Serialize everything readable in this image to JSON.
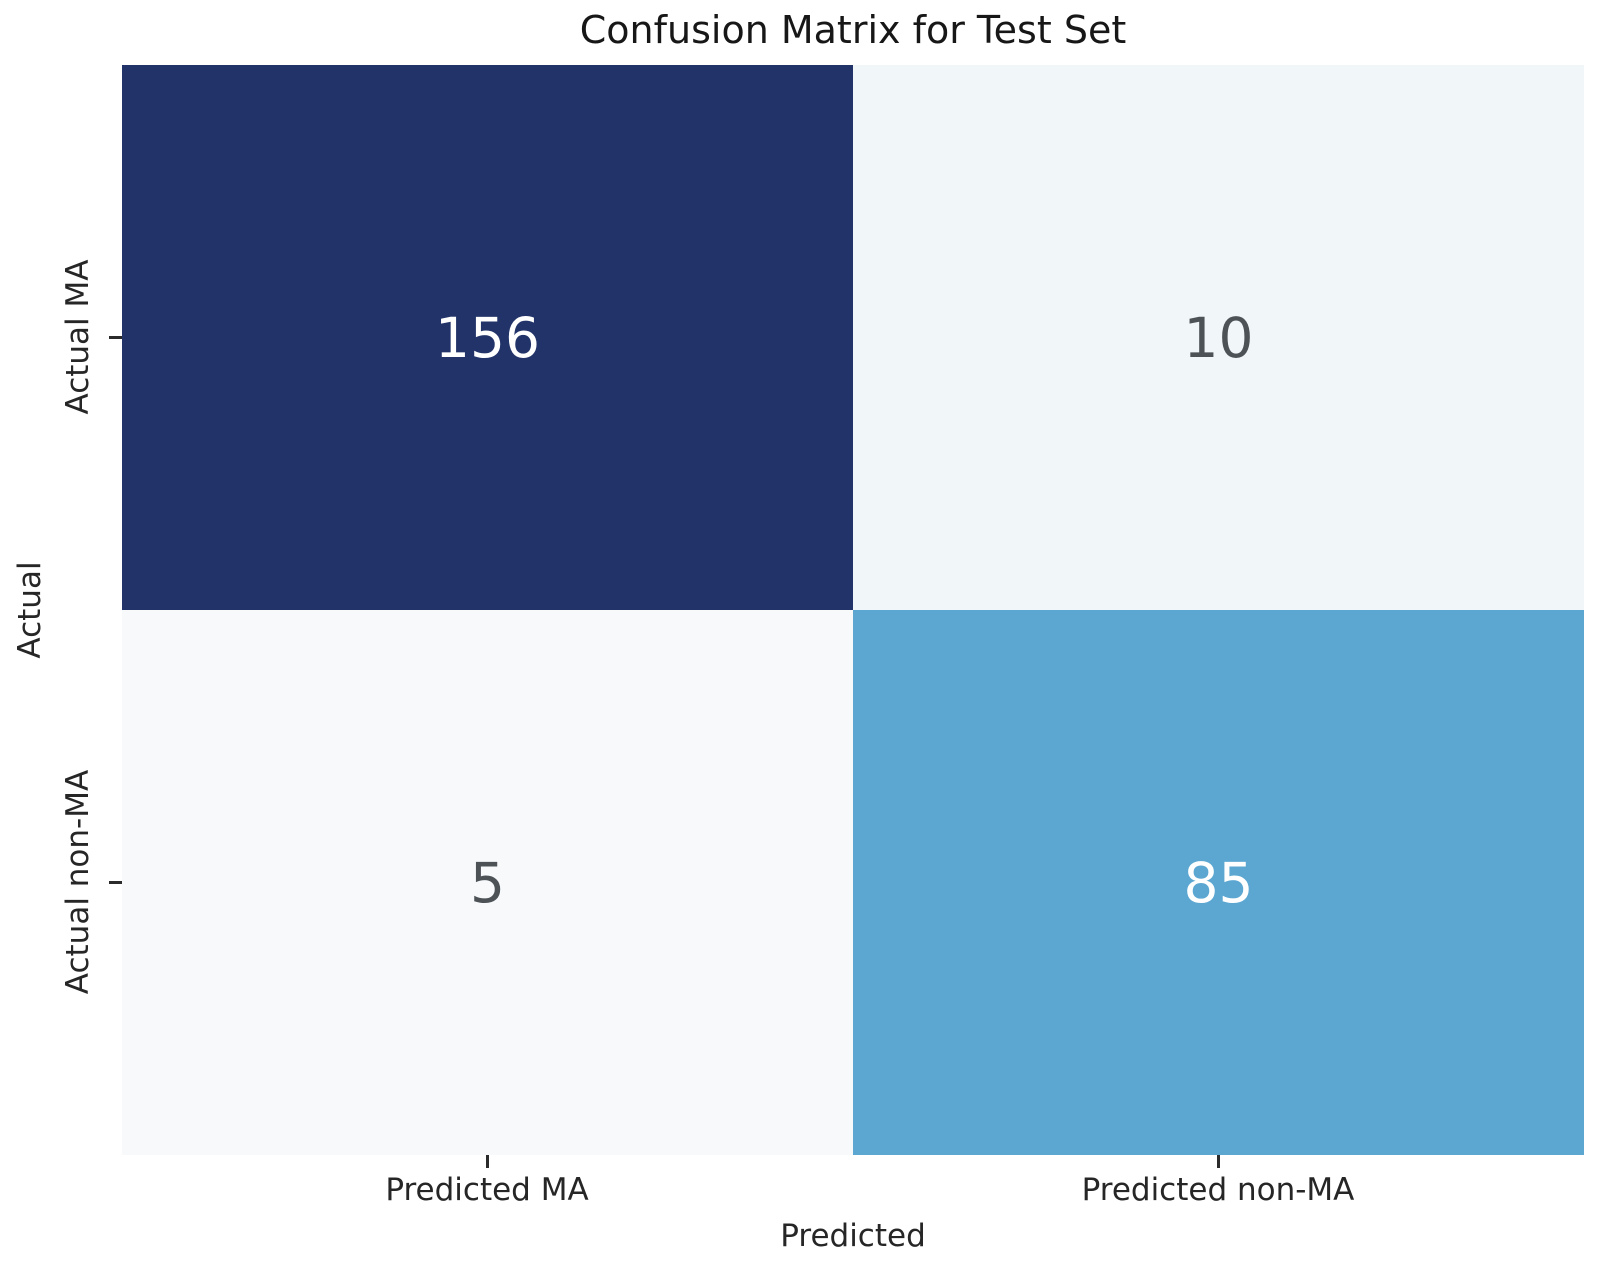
{
  "chart_data": {
    "type": "heatmap",
    "title": "Confusion Matrix for Test Set",
    "xlabel": "Predicted",
    "ylabel": "Actual",
    "x_tick_labels": [
      "Predicted MA",
      "Predicted non-MA"
    ],
    "y_tick_labels": [
      "Actual MA",
      "Actual non-MA"
    ],
    "rows": [
      "Actual MA",
      "Actual non-MA"
    ],
    "columns": [
      "Predicted MA",
      "Predicted non-MA"
    ],
    "values": [
      [
        156,
        10
      ],
      [
        5,
        85
      ]
    ],
    "colormap": "Blues",
    "colorbar": false,
    "grid": false,
    "cells": [
      {
        "row": "Actual MA",
        "col": "Predicted MA",
        "value": "156",
        "bg": "#213368",
        "fg": "#ffffff"
      },
      {
        "row": "Actual MA",
        "col": "Predicted non-MA",
        "value": "10",
        "bg": "#f1f6f9",
        "fg": "#4d5257"
      },
      {
        "row": "Actual non-MA",
        "col": "Predicted MA",
        "value": "5",
        "bg": "#f7f9fb",
        "fg": "#4d5257"
      },
      {
        "row": "Actual non-MA",
        "col": "Predicted non-MA",
        "value": "85",
        "bg": "#5ba7d1",
        "fg": "#ffffff"
      }
    ]
  },
  "colors": {
    "background": "#ffffff",
    "title_text": "#171717",
    "axis_text": "#262626",
    "tick_mark": "#2b2b2b",
    "cell_dark": "#213368",
    "cell_mid": "#5ba7d1",
    "cell_light_high": "#f1f6f9",
    "cell_light_low": "#f7f9fb"
  }
}
